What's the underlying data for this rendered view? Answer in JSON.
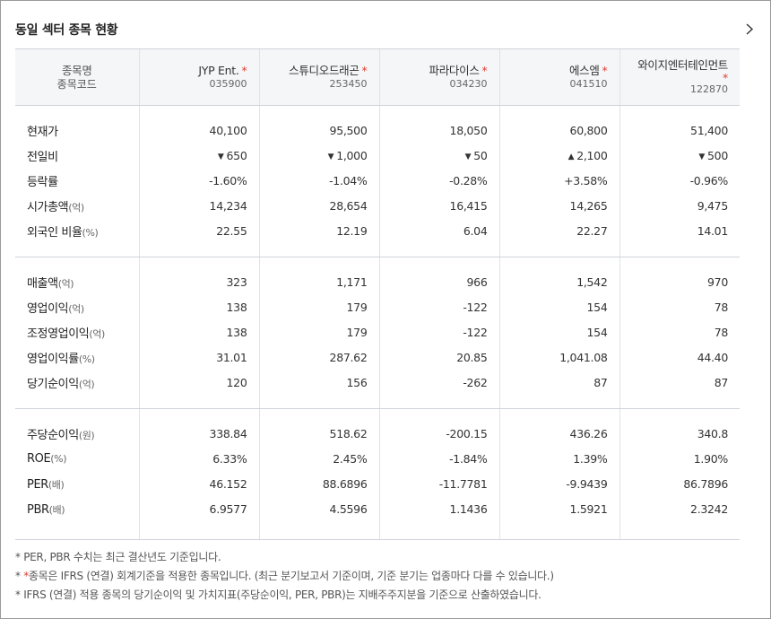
{
  "title": "동일 섹터 종목 현황",
  "header": {
    "name_label": "종목명",
    "code_label": "종목코드",
    "star": "*"
  },
  "stocks": [
    {
      "name": "JYP Ent.",
      "code": "035900"
    },
    {
      "name": "스튜디오드래곤",
      "code": "253450"
    },
    {
      "name": "파라다이스",
      "code": "034230"
    },
    {
      "name": "에스엠",
      "code": "041510"
    },
    {
      "name": "와이지엔터테인먼트",
      "code": "122870"
    }
  ],
  "rows": {
    "price": {
      "label": "현재가",
      "values": [
        "40,100",
        "95,500",
        "18,050",
        "60,800",
        "51,400"
      ]
    },
    "change": {
      "label": "전일비",
      "values": [
        "650",
        "1,000",
        "50",
        "2,100",
        "500"
      ],
      "direction": [
        "down",
        "down",
        "down",
        "up",
        "down"
      ],
      "down_symbol": "▼",
      "up_symbol": "▲"
    },
    "rate": {
      "label": "등락률",
      "values": [
        "-1.60%",
        "-1.04%",
        "-0.28%",
        "+3.58%",
        "-0.96%"
      ]
    },
    "mcap": {
      "label": "시가총액",
      "unit": "(억)",
      "values": [
        "14,234",
        "28,654",
        "16,415",
        "14,265",
        "9,475"
      ]
    },
    "foreign": {
      "label": "외국인 비율",
      "unit": "(%)",
      "values": [
        "22.55",
        "12.19",
        "6.04",
        "22.27",
        "14.01"
      ]
    },
    "sales": {
      "label": "매출액",
      "unit": "(억)",
      "values": [
        "323",
        "1,171",
        "966",
        "1,542",
        "970"
      ]
    },
    "op": {
      "label": "영업이익",
      "unit": "(억)",
      "values": [
        "138",
        "179",
        "-122",
        "154",
        "78"
      ]
    },
    "adj_op": {
      "label": "조정영업이익",
      "unit": "(억)",
      "values": [
        "138",
        "179",
        "-122",
        "154",
        "78"
      ]
    },
    "op_margin": {
      "label": "영업이익률",
      "unit": "(%)",
      "values": [
        "31.01",
        "287.62",
        "20.85",
        "1,041.08",
        "44.40"
      ]
    },
    "net": {
      "label": "당기순이익",
      "unit": "(억)",
      "values": [
        "120",
        "156",
        "-262",
        "87",
        "87"
      ]
    },
    "eps": {
      "label": "주당순이익",
      "unit": "(원)",
      "values": [
        "338.84",
        "518.62",
        "-200.15",
        "436.26",
        "340.8"
      ]
    },
    "roe": {
      "label": "ROE",
      "unit": "(%)",
      "values": [
        "6.33%",
        "2.45%",
        "-1.84%",
        "1.39%",
        "1.90%"
      ]
    },
    "per": {
      "label": "PER",
      "unit": "(배)",
      "values": [
        "46.152",
        "88.6896",
        "-11.7781",
        "-9.9439",
        "86.7896"
      ]
    },
    "pbr": {
      "label": "PBR",
      "unit": "(배)",
      "values": [
        "6.9577",
        "4.5596",
        "1.1436",
        "1.5921",
        "2.3242"
      ]
    }
  },
  "notes": {
    "n1": "* PER, PBR 수치는 최근 결산년도 기준입니다.",
    "n2_prefix": "* ",
    "n2_red": "*",
    "n2_text": "종목은 IFRS (연결) 회계기준을 적용한 종목입니다. (최근 분기보고서 기준이며, 기준 분기는 업종마다 다를 수 있습니다.)",
    "n3": "* IFRS (연결) 적용 종목의 당기순이익 및 가치지표(주당순이익, PER, PBR)는 지배주주지분을 기준으로 산출하였습니다."
  },
  "colors": {
    "up": "#e03c31",
    "down": "#2459b8",
    "header_bg": "#f5f6f8"
  }
}
